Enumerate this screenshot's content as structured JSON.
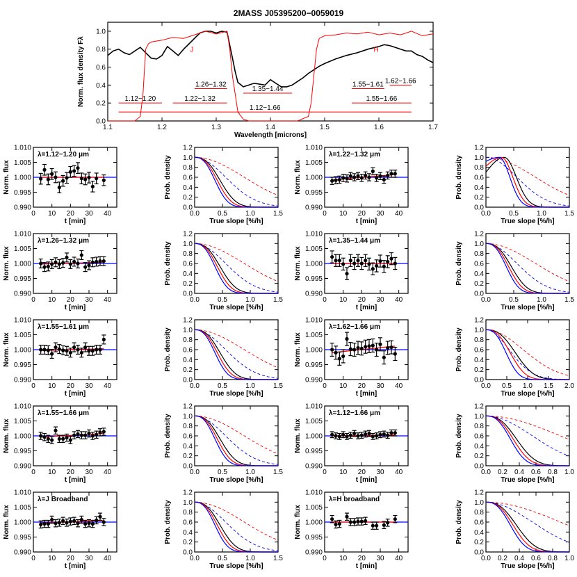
{
  "title": "2MASS J05395200−0059019",
  "colors": {
    "spec_black": "#000000",
    "spec_red": "#ff0000",
    "fit_red": "#ff0000",
    "flat_blue": "#0000ff",
    "pd_black": "#000000",
    "pd_red": "#ff0000",
    "pd_blue": "#0000ff"
  },
  "chart_data": [
    {
      "type": "line",
      "id": "spectrum",
      "title": "2MASS J05395200−0059019",
      "xlabel": "Wavelength [microns]",
      "ylabel": "Norm. flux density Fλ",
      "xlim": [
        1.1,
        1.7
      ],
      "ylim": [
        0.0,
        1.1
      ],
      "xticks": [
        1.1,
        1.2,
        1.3,
        1.4,
        1.5,
        1.6,
        1.7
      ],
      "yticks": [
        0.0,
        0.2,
        0.4,
        0.6,
        0.8,
        1.0
      ],
      "band_labels": [
        {
          "text": "J",
          "x": 1.255,
          "y": 0.77
        },
        {
          "text": "H",
          "x": 1.595,
          "y": 0.77
        }
      ],
      "series": [
        {
          "name": "",
          "color": "black",
          "x": [
            1.1,
            1.11,
            1.12,
            1.13,
            1.14,
            1.15,
            1.16,
            1.17,
            1.18,
            1.19,
            1.2,
            1.21,
            1.22,
            1.23,
            1.24,
            1.25,
            1.26,
            1.27,
            1.28,
            1.29,
            1.3,
            1.31,
            1.32,
            1.33,
            1.335,
            1.34,
            1.35,
            1.36,
            1.37,
            1.38,
            1.39,
            1.4,
            1.41,
            1.42,
            1.43,
            1.44,
            1.45,
            1.46,
            1.47,
            1.48,
            1.49,
            1.5,
            1.52,
            1.54,
            1.56,
            1.58,
            1.6,
            1.61,
            1.62,
            1.63,
            1.64,
            1.65,
            1.66,
            1.67,
            1.68,
            1.69,
            1.7
          ],
          "y": [
            0.73,
            0.78,
            0.8,
            0.76,
            0.74,
            0.78,
            0.82,
            0.76,
            0.7,
            0.69,
            0.73,
            0.83,
            0.78,
            0.73,
            0.8,
            0.86,
            0.92,
            0.98,
            1.0,
            1.0,
            0.98,
            1.0,
            0.99,
            0.7,
            0.55,
            0.43,
            0.38,
            0.4,
            0.42,
            0.41,
            0.4,
            0.46,
            0.42,
            0.38,
            0.38,
            0.4,
            0.44,
            0.48,
            0.53,
            0.57,
            0.61,
            0.64,
            0.69,
            0.73,
            0.76,
            0.8,
            0.83,
            0.85,
            0.84,
            0.82,
            0.8,
            0.78,
            0.78,
            0.74,
            0.72,
            0.68,
            0.65
          ]
        },
        {
          "name": "",
          "color": "red",
          "x": [
            1.1,
            1.15,
            1.16,
            1.165,
            1.17,
            1.175,
            1.18,
            1.2,
            1.22,
            1.24,
            1.26,
            1.28,
            1.3,
            1.32,
            1.325,
            1.33,
            1.34,
            1.35,
            1.36,
            1.4,
            1.45,
            1.47,
            1.475,
            1.48,
            1.485,
            1.49,
            1.5,
            1.52,
            1.54,
            1.56,
            1.58,
            1.6,
            1.62,
            1.64,
            1.66,
            1.68,
            1.7
          ],
          "y": [
            0.0,
            0.0,
            0.05,
            0.3,
            0.8,
            0.86,
            0.88,
            0.9,
            0.93,
            0.92,
            0.96,
            1.0,
            0.97,
            1.0,
            0.8,
            0.5,
            0.1,
            0.02,
            0.0,
            0.0,
            0.0,
            0.05,
            0.2,
            0.5,
            0.8,
            0.92,
            0.95,
            0.96,
            0.98,
            0.97,
            0.99,
            0.96,
            0.98,
            0.96,
            1.0,
            0.95,
            0.97
          ]
        }
      ],
      "bandpasses": [
        {
          "label": "1.12−1.20",
          "range": [
            1.12,
            1.2
          ],
          "y": 0.2
        },
        {
          "label": "1.26−1.32",
          "range": [
            1.26,
            1.32
          ],
          "y": 0.36
        },
        {
          "label": "1.22−1.32",
          "range": [
            1.22,
            1.32
          ],
          "y": 0.2
        },
        {
          "label": "1.35−1.44",
          "range": [
            1.35,
            1.44
          ],
          "y": 0.31
        },
        {
          "label": "1.55−1.61",
          "range": [
            1.55,
            1.61
          ],
          "y": 0.36
        },
        {
          "label": "1.62−1.66",
          "range": [
            1.62,
            1.66
          ],
          "y": 0.4
        },
        {
          "label": "1.55−1.66",
          "range": [
            1.55,
            1.66
          ],
          "y": 0.2
        },
        {
          "label": "1.12−1.66",
          "range": [
            1.12,
            1.66
          ],
          "y": 0.1
        }
      ]
    },
    {
      "type": "scatter",
      "id": "lc1",
      "label": "λ=1.12−1.20 μm",
      "xlabel": "t [min]",
      "ylabel": "Norm. flux",
      "xlim": [
        0,
        45
      ],
      "ylim": [
        0.99,
        1.01
      ],
      "x": [
        4,
        6,
        8,
        10,
        12,
        14,
        16,
        18,
        20,
        22,
        24,
        26,
        28,
        30,
        32,
        34,
        38
      ],
      "y": [
        0.9995,
        1.0025,
        0.9993,
        1.0011,
        1.0,
        0.9966,
        0.9988,
        0.9998,
        1.0018,
        1.0021,
        1.0031,
        0.9996,
        0.9993,
        0.9999,
        0.9969,
        0.9996,
        0.999
      ],
      "err": 0.0018,
      "fit": [
        1.0,
        1.0
      ]
    },
    {
      "type": "line",
      "id": "pd1",
      "xlabel": "True slope [%/h]",
      "ylabel": "Prob. density",
      "xlim": [
        0,
        1.5
      ],
      "ylim": [
        0,
        1.2
      ],
      "xticks": [
        0.0,
        0.5,
        1.0,
        1.5
      ],
      "shape": "narrow"
    },
    {
      "type": "scatter",
      "id": "lc2",
      "label": "λ=1.22−1.32 μm",
      "xlabel": "t [min]",
      "ylabel": "Norm. flux",
      "xlim": [
        0,
        45
      ],
      "ylim": [
        0.99,
        1.01
      ],
      "x": [
        4,
        6,
        8,
        10,
        12,
        14,
        16,
        18,
        20,
        22,
        24,
        26,
        28,
        30,
        32,
        34,
        36,
        38
      ],
      "y": [
        0.9988,
        0.999,
        0.9992,
        0.9998,
        0.9996,
        1.0004,
        1.0,
        1.0004,
        0.9998,
        1.0006,
        1.0,
        1.002,
        0.9998,
        1.0004,
        0.9992,
        1.0006,
        1.0012,
        1.0012
      ],
      "err": 0.0012,
      "fit": [
        0.9991,
        1.0009
      ]
    },
    {
      "type": "line",
      "id": "pd2",
      "xlabel": "True slope [%/h]",
      "ylabel": "Prob. density",
      "xlim": [
        0,
        1.5
      ],
      "ylim": [
        0,
        1.2
      ],
      "xticks": [
        0.0,
        0.5,
        1.0,
        1.5
      ],
      "shape": "peaked"
    },
    {
      "type": "scatter",
      "id": "lc3",
      "label": "λ=1.26−1.32 μm",
      "xlabel": "t [min]",
      "ylabel": "Norm. flux",
      "xlim": [
        0,
        45
      ],
      "ylim": [
        0.99,
        1.01
      ],
      "x": [
        4,
        6,
        8,
        10,
        12,
        14,
        16,
        18,
        20,
        22,
        24,
        26,
        28,
        30,
        32,
        34,
        36,
        38
      ],
      "y": [
        1.0,
        0.9988,
        0.999,
        0.9998,
        1.0004,
        0.9998,
        1.0002,
        1.002,
        0.9998,
        1.0006,
        1.0,
        1.0028,
        0.9988,
        0.9994,
        1.0004,
        1.0006,
        1.0008,
        1.0008
      ],
      "err": 0.0015,
      "fit": [
        0.9998,
        1.0004
      ]
    },
    {
      "type": "line",
      "id": "pd3",
      "xlabel": "True slope [%/h]",
      "ylabel": "Prob. density",
      "xlim": [
        0,
        1.5
      ],
      "ylim": [
        0,
        1.2
      ],
      "xticks": [
        0.0,
        0.5,
        1.0,
        1.5
      ],
      "shape": "narrow"
    },
    {
      "type": "scatter",
      "id": "lc4",
      "label": "λ=1.35−1.44 μm",
      "xlabel": "t [min]",
      "ylabel": "Norm. flux",
      "xlim": [
        0,
        45
      ],
      "ylim": [
        0.99,
        1.01
      ],
      "x": [
        4,
        6,
        8,
        10,
        12,
        14,
        16,
        18,
        20,
        22,
        24,
        26,
        28,
        30,
        32,
        34,
        36,
        38
      ],
      "y": [
        1.0022,
        1.001,
        1.001,
        0.9998,
        0.9966,
        1.001,
        1.0,
        1.001,
        1.0,
        1.001,
        0.9998,
        0.9982,
        0.9992,
        1.0008,
        0.999,
        1.0006,
        1.0016,
        1.0
      ],
      "err": 0.002,
      "fit": [
        1.0,
        1.0
      ]
    },
    {
      "type": "line",
      "id": "pd4",
      "xlabel": "True slope [%/h]",
      "ylabel": "Prob. density",
      "xlim": [
        0,
        1.5
      ],
      "ylim": [
        0,
        1.2
      ],
      "xticks": [
        0.0,
        0.5,
        1.0,
        1.5
      ],
      "shape": "narrow"
    },
    {
      "type": "scatter",
      "id": "lc5",
      "label": "λ=1.55−1.61 μm",
      "xlabel": "t [min]",
      "ylabel": "Norm. flux",
      "xlim": [
        0,
        45
      ],
      "ylim": [
        0.99,
        1.01
      ],
      "x": [
        4,
        6,
        8,
        10,
        12,
        14,
        16,
        18,
        20,
        22,
        24,
        26,
        28,
        30,
        32,
        34,
        36,
        38
      ],
      "y": [
        1.0,
        1.0,
        0.9998,
        0.9986,
        1.0008,
        1.0002,
        0.9998,
        0.9996,
        0.999,
        1.0008,
        1.0,
        0.999,
        1.0008,
        0.9996,
        0.9996,
        1.0,
        1.0,
        1.0034
      ],
      "err": 0.0015,
      "fit": [
        0.9997,
        1.0003
      ]
    },
    {
      "type": "line",
      "id": "pd5",
      "xlabel": "True slope [%/h]",
      "ylabel": "Prob. density",
      "xlim": [
        0,
        1.5
      ],
      "ylim": [
        0,
        1.2
      ],
      "xticks": [
        0.0,
        0.5,
        1.0,
        1.5
      ],
      "shape": "narrow"
    },
    {
      "type": "scatter",
      "id": "lc6",
      "label": "λ=1.62−1.66 μm",
      "xlabel": "t [min]",
      "ylabel": "Norm. flux",
      "xlim": [
        0,
        45
      ],
      "ylim": [
        0.99,
        1.01
      ],
      "x": [
        4,
        6,
        8,
        10,
        12,
        14,
        16,
        18,
        20,
        22,
        24,
        26,
        28,
        30,
        32,
        34,
        36,
        38
      ],
      "y": [
        1.0,
        0.999,
        0.997,
        0.9978,
        1.0036,
        1.0002,
        1.0,
        1.0006,
        1.0004,
        1.001,
        1.0012,
        1.0014,
        1.0,
        1.0018,
        0.9974,
        1.0006,
        1.0008,
        0.9986
      ],
      "err": 0.0022,
      "fit": [
        0.999,
        1.0012
      ]
    },
    {
      "type": "line",
      "id": "pd6",
      "xlabel": "True slope [%/h]",
      "ylabel": "Prob. density",
      "xlim": [
        0,
        2.0
      ],
      "ylim": [
        0,
        1.2
      ],
      "xticks": [
        0.0,
        0.5,
        1.0,
        1.5,
        2.0
      ],
      "shape": "wide"
    },
    {
      "type": "scatter",
      "id": "lc7",
      "label": "λ=1.55−1.66 μm",
      "xlabel": "t [min]",
      "ylabel": "Norm. flux",
      "xlim": [
        0,
        45
      ],
      "ylim": [
        0.99,
        1.01
      ],
      "x": [
        4,
        6,
        8,
        10,
        12,
        14,
        16,
        18,
        20,
        22,
        24,
        26,
        28,
        30,
        32,
        34,
        36,
        38
      ],
      "y": [
        1.0,
        0.9996,
        0.999,
        0.9986,
        1.0018,
        0.999,
        0.999,
        0.9994,
        0.9986,
        1.0002,
        1.0006,
        1.0002,
        1.0002,
        1.0008,
        1.0,
        1.0004,
        1.0012,
        1.0014
      ],
      "err": 0.0012,
      "fit": [
        0.9996,
        1.0008
      ]
    },
    {
      "type": "line",
      "id": "pd7",
      "xlabel": "True slope [%/h]",
      "ylabel": "Prob. density",
      "xlim": [
        0,
        1.5
      ],
      "ylim": [
        0,
        1.2
      ],
      "xticks": [
        0.0,
        0.5,
        1.0,
        1.5
      ],
      "shape": "narrow"
    },
    {
      "type": "scatter",
      "id": "lc8",
      "label": "λ=1.12−1.66 μm",
      "xlabel": "t [min]",
      "ylabel": "Norm. flux",
      "xlim": [
        0,
        45
      ],
      "ylim": [
        0.99,
        1.01
      ],
      "x": [
        4,
        6,
        8,
        10,
        12,
        14,
        16,
        18,
        20,
        22,
        24,
        26,
        28,
        30,
        32,
        34,
        36,
        38
      ],
      "y": [
        1.0004,
        1.0,
        0.9998,
        1.0004,
        0.9998,
        1.0002,
        1.0008,
        1.0,
        1.0002,
        1.0006,
        1.0008,
        0.9998,
        1.0,
        1.0004,
        1.0006,
        1.0002,
        1.001,
        1.001
      ],
      "err": 0.001,
      "fit": [
        1.0,
        1.0003
      ]
    },
    {
      "type": "line",
      "id": "pd8",
      "xlabel": "True slope [%/h]",
      "ylabel": "Prob. density",
      "xlim": [
        0,
        1.0
      ],
      "ylim": [
        0,
        1.2
      ],
      "xticks": [
        0.0,
        0.2,
        0.4,
        0.6,
        0.8,
        1.0
      ],
      "shape": "narrow"
    },
    {
      "type": "scatter",
      "id": "lc9",
      "label": "λ=J Broadband",
      "xlabel": "t [min]",
      "ylabel": "Norm. flux",
      "xlim": [
        0,
        45
      ],
      "ylim": [
        0.99,
        1.01
      ],
      "x": [
        4,
        6,
        8,
        10,
        12,
        14,
        16,
        18,
        20,
        22,
        24,
        26,
        28,
        30,
        32,
        34,
        36,
        38
      ],
      "y": [
        0.9992,
        0.9994,
        0.9994,
        1.0008,
        0.9996,
        0.9998,
        1.0004,
        0.9998,
        1.0002,
        1.0004,
        0.9996,
        1.0008,
        0.9994,
        0.9996,
        0.9994,
        1.0006,
        1.0018,
        1.0
      ],
      "err": 0.0012,
      "fit": [
        0.9997,
        1.0005
      ]
    },
    {
      "type": "line",
      "id": "pd9",
      "xlabel": "True slope [%/h]",
      "ylabel": "Prob. density",
      "xlim": [
        0,
        1.5
      ],
      "ylim": [
        0,
        1.2
      ],
      "xticks": [
        0.0,
        0.5,
        1.0,
        1.5
      ],
      "shape": "narrow"
    },
    {
      "type": "scatter",
      "id": "lc10",
      "label": "λ=H broadband",
      "xlabel": "t [min]",
      "ylabel": "Norm. flux",
      "xlim": [
        0,
        45
      ],
      "ylim": [
        0.99,
        1.01
      ],
      "x": [
        4,
        6,
        8,
        12,
        14,
        16,
        18,
        20,
        22,
        26,
        28,
        32,
        34,
        38
      ],
      "y": [
        1.001,
        0.9992,
        0.9994,
        1.0018,
        1.0,
        1.0,
        1.0002,
        1.0002,
        1.0004,
        0.9988,
        0.9988,
        0.999,
        0.9998,
        1.001
      ],
      "err": 0.0012,
      "fit": [
        1.0,
        1.0
      ]
    },
    {
      "type": "line",
      "id": "pd10",
      "xlabel": "True slope [%/h]",
      "ylabel": "Prob. density",
      "xlim": [
        0,
        1.0
      ],
      "ylim": [
        0,
        1.2
      ],
      "xticks": [
        0.0,
        0.2,
        0.4,
        0.6,
        0.8,
        1.0
      ],
      "shape": "narrow"
    }
  ]
}
